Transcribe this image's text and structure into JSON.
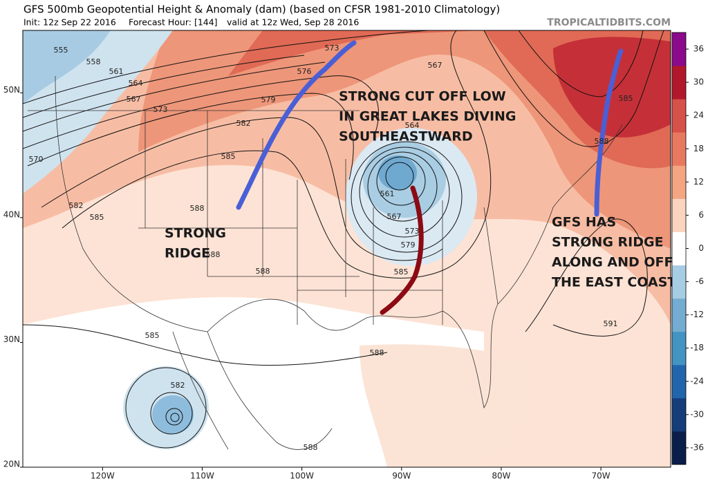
{
  "header": {
    "title": "GFS 500mb Geopotential Height & Anomaly (dam) (based on CFSR 1981-2010 Climatology)",
    "init": "Init: 12z Sep 22 2016",
    "forecast_hour": "Forecast Hour: [144]",
    "valid": "valid at 12z Wed, Sep 28 2016",
    "site": "TROPICALTIDBITS.COM"
  },
  "map": {
    "lonlim": [
      -128,
      -63
    ],
    "latlim": [
      20,
      55
    ],
    "lonticks": [
      {
        "value": -120,
        "label": "120W"
      },
      {
        "value": -110,
        "label": "110W"
      },
      {
        "value": -100,
        "label": "100W"
      },
      {
        "value": -90,
        "label": "90W"
      },
      {
        "value": -80,
        "label": "80W"
      },
      {
        "value": -70,
        "label": "70W"
      }
    ],
    "latticks": [
      {
        "value": 20,
        "label": "20N"
      },
      {
        "value": 30,
        "label": "30N"
      },
      {
        "value": 40,
        "label": "40N"
      },
      {
        "value": 50,
        "label": "50N"
      }
    ],
    "contour_labels": [
      555,
      558,
      561,
      564,
      567,
      573,
      570,
      579,
      582,
      585,
      588,
      582,
      585,
      588,
      588,
      573,
      567,
      564,
      561,
      567,
      573,
      579,
      585,
      585,
      588,
      591,
      585,
      582,
      588,
      588,
      576
    ]
  },
  "colorbar": {
    "lim": [
      -39,
      39
    ],
    "ticks": [
      36,
      30,
      24,
      18,
      12,
      6,
      0,
      -6,
      -12,
      -18,
      -24,
      -30,
      -36
    ],
    "colors": [
      "#0a1e4a",
      "#143d7a",
      "#2166ac",
      "#4393c3",
      "#74add1",
      "#a6cde4",
      "#ffffff",
      "#fbd4c0",
      "#f4a582",
      "#e8795f",
      "#d6514a",
      "#b2182b",
      "#8b0a8b"
    ]
  },
  "annotations": [
    {
      "lines": [
        "STRONG CUT OFF LOW",
        "IN GREAT LAKES DIVING",
        "SOUTHEASTWARD"
      ]
    },
    {
      "lines": [
        "STRONG",
        "RIDGE"
      ]
    },
    {
      "lines": [
        "GFS HAS",
        "STRONG RIDGE",
        "ALONG AND OFF",
        "THE EAST COAST"
      ]
    }
  ]
}
